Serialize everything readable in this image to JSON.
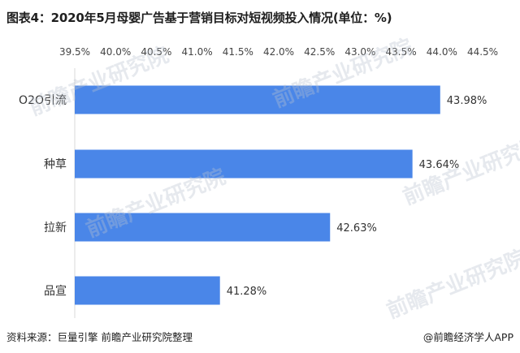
{
  "title": "图表4：2020年5月母婴广告基于营销目标对短视频投入情况(单位：%)",
  "source": "资料来源：巨量引擎 前瞻产业研究院整理",
  "brand": "@前瞻经济学人APP",
  "watermark": "前瞻产业研究院",
  "colors": {
    "bar": "#4a86e8",
    "grid": "#d9d9d9",
    "text": "#333333"
  },
  "chart_data": {
    "type": "bar",
    "orientation": "horizontal",
    "title": "图表4：2020年5月母婴广告基于营销目标对短视频投入情况(单位：%)",
    "categories": [
      "O2O引流",
      "种草",
      "拉新",
      "品宣"
    ],
    "values": [
      43.98,
      43.64,
      42.63,
      41.28
    ],
    "data_labels": [
      "43.98%",
      "43.64%",
      "42.63%",
      "41.28%"
    ],
    "x_ticks": [
      "39.5%",
      "40.0%",
      "40.5%",
      "41.0%",
      "41.5%",
      "42.0%",
      "42.5%",
      "43.0%",
      "43.5%",
      "44.0%",
      "44.5%"
    ],
    "xlim": [
      39.5,
      44.5
    ],
    "x_axis_position": "top",
    "grid": false,
    "legend": "none"
  }
}
